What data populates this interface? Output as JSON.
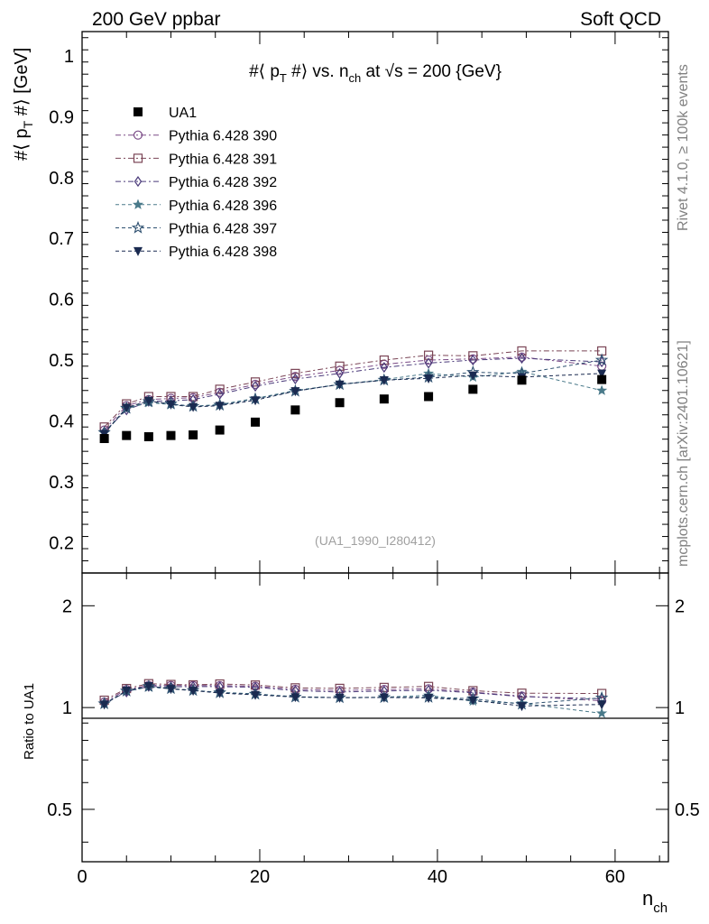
{
  "header": {
    "left": "200 GeV ppbar",
    "right": "Soft QCD"
  },
  "side_text": {
    "top": "Rivet 4.1.0, ≥ 100k events",
    "bottom": "mcplots.cern.ch [arXiv:2401.10621]"
  },
  "chart_data": {
    "type": "scatter",
    "title": {
      "prefix": "#⟨ p",
      "sub1": "T",
      "mid1": " #⟩ vs. n",
      "sub2": "ch",
      "mid2": " at √",
      "rest": "s = 200 {GeV}"
    },
    "watermark": "(UA1_1990_I280412)",
    "ylabel": {
      "prefix": "#⟨ p",
      "sub": "T",
      "suffix": " #⟩ [GeV]"
    },
    "ratio_ylabel": "Ratio to UA1",
    "xlabel": {
      "main": "n",
      "sub": "ch"
    },
    "xlim": [
      0,
      66
    ],
    "ylim": [
      0.15,
      1.04
    ],
    "ratio_ylim": [
      0.35,
      2.5
    ],
    "x_ticks": [
      "0",
      "20",
      "40",
      "60"
    ],
    "x_tick_values": [
      0,
      20,
      40,
      60
    ],
    "y_ticks": [
      "0.2",
      "0.3",
      "0.4",
      "0.5",
      "0.6",
      "0.7",
      "0.8",
      "0.9",
      "1"
    ],
    "y_tick_values": [
      0.2,
      0.3,
      0.4,
      0.5,
      0.6,
      0.7,
      0.8,
      0.9,
      1.0
    ],
    "ratio_ticks": [
      "0.5",
      "1",
      "2"
    ],
    "ratio_tick_values": [
      0.5,
      1,
      2
    ],
    "x": [
      2.5,
      5,
      7.5,
      10,
      12.5,
      15.5,
      19.5,
      24,
      29,
      34,
      39,
      44,
      49.5,
      58.5
    ],
    "data": {
      "name": "UA1",
      "values": [
        0.371,
        0.376,
        0.374,
        0.376,
        0.377,
        0.385,
        0.398,
        0.418,
        0.43,
        0.436,
        0.44,
        0.452,
        0.467,
        0.468
      ]
    },
    "series": [
      {
        "name": "Pythia 6.428 390",
        "color": "#7a4a86",
        "marker": "circle",
        "dash": "6,3,2,3",
        "values": [
          0.385,
          0.425,
          0.435,
          0.437,
          0.438,
          0.447,
          0.46,
          0.473,
          0.483,
          0.493,
          0.5,
          0.502,
          0.505,
          0.49
        ]
      },
      {
        "name": "Pythia 6.428 391",
        "color": "#7a4455",
        "marker": "square",
        "dash": "6,3,2,3",
        "values": [
          0.39,
          0.428,
          0.44,
          0.44,
          0.44,
          0.452,
          0.464,
          0.478,
          0.49,
          0.5,
          0.508,
          0.507,
          0.515,
          0.515
        ]
      },
      {
        "name": "Pythia 6.428 392",
        "color": "#4a3a7a",
        "marker": "diamond",
        "dash": "6,3,2,3",
        "values": [
          0.382,
          0.418,
          0.432,
          0.433,
          0.435,
          0.444,
          0.457,
          0.469,
          0.478,
          0.488,
          0.495,
          0.5,
          0.503,
          0.497
        ]
      },
      {
        "name": "Pythia 6.428 396",
        "color": "#4a7a8a",
        "marker": "star",
        "dash": "4,3",
        "values": [
          0.38,
          0.42,
          0.43,
          0.427,
          0.424,
          0.427,
          0.437,
          0.45,
          0.46,
          0.468,
          0.478,
          0.472,
          0.481,
          0.45
        ]
      },
      {
        "name": "Pythia 6.428 397",
        "color": "#2e5070",
        "marker": "star-open",
        "dash": "4,3",
        "values": [
          0.381,
          0.421,
          0.432,
          0.428,
          0.424,
          0.426,
          0.436,
          0.449,
          0.46,
          0.467,
          0.472,
          0.48,
          0.478,
          0.5
        ]
      },
      {
        "name": "Pythia 6.428 398",
        "color": "#1a2a50",
        "marker": "triangle-down",
        "dash": "4,3",
        "values": [
          0.379,
          0.422,
          0.433,
          0.427,
          0.423,
          0.425,
          0.434,
          0.449,
          0.46,
          0.467,
          0.47,
          0.475,
          0.472,
          0.478
        ]
      }
    ]
  }
}
